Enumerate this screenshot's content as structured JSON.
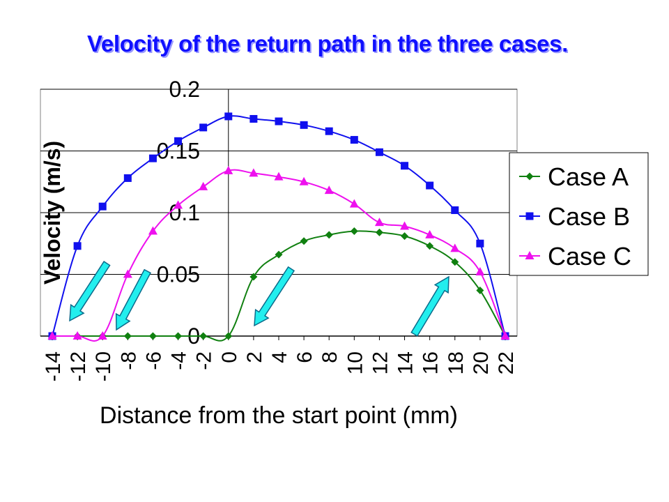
{
  "colors": {
    "case_a": "#108010",
    "case_b": "#1010ee",
    "case_c": "#ee10ee",
    "arrow_fill": "#22eeee",
    "arrow_stroke": "#0a6a8a"
  },
  "chart_data": {
    "type": "line",
    "title": "Velocity of the return path in the three cases.",
    "xlabel": "Distance from the start point (mm)",
    "ylabel": "Velocity (m/s)",
    "xlim": [
      -14,
      22
    ],
    "ylim": [
      0,
      0.2
    ],
    "x_ticks": [
      "-14",
      "-12",
      "-10",
      "-8",
      "-6",
      "-4",
      "-2",
      "0",
      "2",
      "4",
      "6",
      "8",
      "10",
      "12",
      "14",
      "16",
      "18",
      "20",
      "22"
    ],
    "y_ticks": [
      "0",
      "0.05",
      "0.1",
      "0.15",
      "0.2"
    ],
    "y_tick_values": [
      0,
      0.05,
      0.1,
      0.15,
      0.2
    ],
    "grid": "horizontal",
    "legend_position": "right",
    "series": [
      {
        "name": "Case A",
        "marker": "diamond",
        "x": [
          -14,
          -12,
          -10,
          -8,
          -6,
          -4,
          -2,
          0,
          2,
          4,
          6,
          8,
          10,
          12,
          14,
          16,
          18,
          20,
          22
        ],
        "values": [
          0,
          0,
          0,
          0,
          0,
          0,
          0,
          0,
          0.048,
          0.066,
          0.077,
          0.082,
          0.085,
          0.084,
          0.081,
          0.073,
          0.06,
          0.037,
          0
        ]
      },
      {
        "name": "Case B",
        "marker": "square",
        "x": [
          -14,
          -12,
          -10,
          -8,
          -6,
          -4,
          -2,
          0,
          2,
          4,
          6,
          8,
          10,
          12,
          14,
          16,
          18,
          20,
          22
        ],
        "values": [
          0,
          0.073,
          0.105,
          0.128,
          0.144,
          0.158,
          0.169,
          0.178,
          0.176,
          0.174,
          0.171,
          0.166,
          0.159,
          0.149,
          0.138,
          0.122,
          0.102,
          0.075,
          0
        ]
      },
      {
        "name": "Case C",
        "marker": "triangle",
        "x": [
          -14,
          -12,
          -10,
          -8,
          -6,
          -4,
          -2,
          0,
          2,
          4,
          6,
          8,
          10,
          12,
          14,
          16,
          18,
          20,
          22
        ],
        "values": [
          0,
          0,
          0,
          0.05,
          0.085,
          0.106,
          0.121,
          0.134,
          0.132,
          0.129,
          0.125,
          0.118,
          0.107,
          0.092,
          0.089,
          0.082,
          0.071,
          0.052,
          0
        ]
      }
    ]
  }
}
